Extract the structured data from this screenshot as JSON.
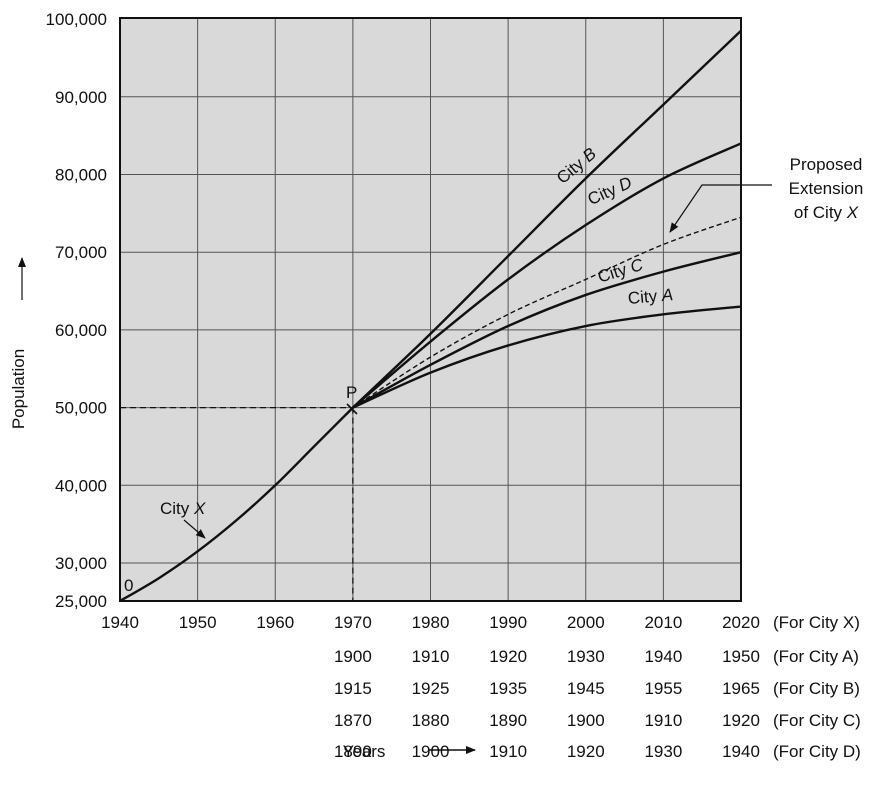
{
  "chart_data": {
    "type": "line",
    "xlabel": "Years",
    "ylabel": "Population",
    "xlim": [
      1940,
      2020
    ],
    "ylim": [
      25000,
      100000
    ],
    "grid": true,
    "y_ticks": [
      {
        "value": 25000,
        "label": "25,000"
      },
      {
        "value": 30000,
        "label": "30,000"
      },
      {
        "value": 40000,
        "label": "40,000"
      },
      {
        "value": 50000,
        "label": "50,000"
      },
      {
        "value": 60000,
        "label": "60,000"
      },
      {
        "value": 70000,
        "label": "70,000"
      },
      {
        "value": 80000,
        "label": "80,000"
      },
      {
        "value": 90000,
        "label": "90,000"
      },
      {
        "value": 100000,
        "label": "100,000"
      }
    ],
    "x_tick_rows": [
      {
        "labels": [
          "1940",
          "1950",
          "1960",
          "1970",
          "1980",
          "1990",
          "2000",
          "2010",
          "2020"
        ],
        "suffix": "(For City X)"
      },
      {
        "labels": [
          "1900",
          "1910",
          "1920",
          "1930",
          "1940",
          "1950"
        ],
        "suffix": "(For City A)"
      },
      {
        "labels": [
          "1915",
          "1925",
          "1935",
          "1945",
          "1955",
          "1965"
        ],
        "suffix": "(For City B)"
      },
      {
        "labels": [
          "1870",
          "1880",
          "1890",
          "1900",
          "1910",
          "1920"
        ],
        "suffix": "(For City C)"
      },
      {
        "labels": [
          "1890",
          "1900",
          "1910",
          "1920",
          "1930",
          "1940"
        ],
        "suffix": "(For City D)"
      }
    ],
    "series": [
      {
        "name": "City X",
        "style": "solid",
        "x": [
          1940,
          1945,
          1950,
          1955,
          1960,
          1965,
          1970
        ],
        "values": [
          25000,
          28000,
          31500,
          35500,
          40000,
          45000,
          50000
        ]
      },
      {
        "name": "City B",
        "style": "solid",
        "x": [
          1970,
          1980,
          1990,
          2000,
          2010,
          2020
        ],
        "values": [
          50000,
          59500,
          69500,
          79500,
          89000,
          98500
        ]
      },
      {
        "name": "City D",
        "style": "solid",
        "x": [
          1970,
          1980,
          1990,
          2000,
          2010,
          2020
        ],
        "values": [
          50000,
          58500,
          66500,
          73500,
          79500,
          84000
        ]
      },
      {
        "name": "Proposed Extension of City X",
        "style": "dashed",
        "x": [
          1970,
          1980,
          1990,
          2000,
          2010,
          2020
        ],
        "values": [
          50000,
          56500,
          62000,
          66500,
          71000,
          74500
        ]
      },
      {
        "name": "City C",
        "style": "solid",
        "x": [
          1970,
          1980,
          1990,
          2000,
          2010,
          2020
        ],
        "values": [
          50000,
          55500,
          60500,
          64500,
          67500,
          70000
        ]
      },
      {
        "name": "City A",
        "style": "solid",
        "x": [
          1970,
          1980,
          1990,
          2000,
          2010,
          2020
        ],
        "values": [
          50000,
          54500,
          58000,
          60500,
          62000,
          63000
        ]
      }
    ],
    "annotations": {
      "origin": "0",
      "point_p": "P",
      "proposed": [
        "Proposed",
        "Extension",
        "of City X"
      ],
      "years_arrow": "Years",
      "population_arrow": "Population"
    },
    "reference_point": {
      "x": 1970,
      "y": 50000
    },
    "colors": {
      "plot_bg": "#d9d9d9",
      "grid": "#555555",
      "line": "#111111",
      "frame": "#111111"
    }
  }
}
